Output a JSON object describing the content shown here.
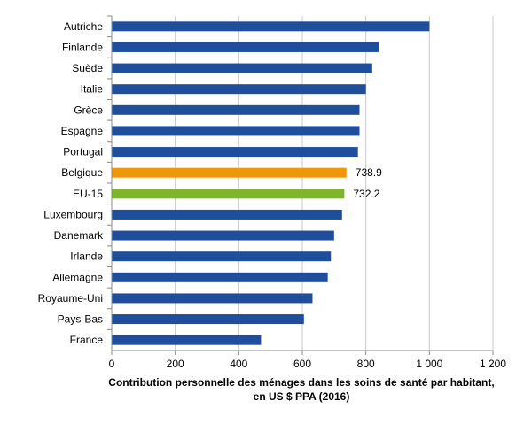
{
  "chart_data": {
    "type": "bar",
    "orientation": "horizontal",
    "categories": [
      "Autriche",
      "Finlande",
      "Suède",
      "Italie",
      "Grèce",
      "Espagne",
      "Portugal",
      "Belgique",
      "EU-15",
      "Luxembourg",
      "Danemark",
      "Irlande",
      "Allemagne",
      "Royaume-Uni",
      "Pays-Bas",
      "France"
    ],
    "values": [
      1000,
      840,
      820,
      800,
      780,
      780,
      775,
      738.9,
      732.2,
      725,
      700,
      690,
      680,
      632,
      605,
      470
    ],
    "data_labels": {
      "Belgique": "738.9",
      "EU-15": "732.2"
    },
    "colors": {
      "default": "#1f4e9c",
      "Belgique": "#f0960a",
      "EU-15": "#7fb52b"
    },
    "xticks": [
      "0",
      "200",
      "400",
      "600",
      "800",
      "1 000",
      "1 200"
    ],
    "xlim": [
      0,
      1200
    ],
    "xlabel": "Contribution personnelle des ménages dans les soins de santé par habitant, en US $ PPA (2016)",
    "grid": "vertical",
    "legend": "none"
  }
}
